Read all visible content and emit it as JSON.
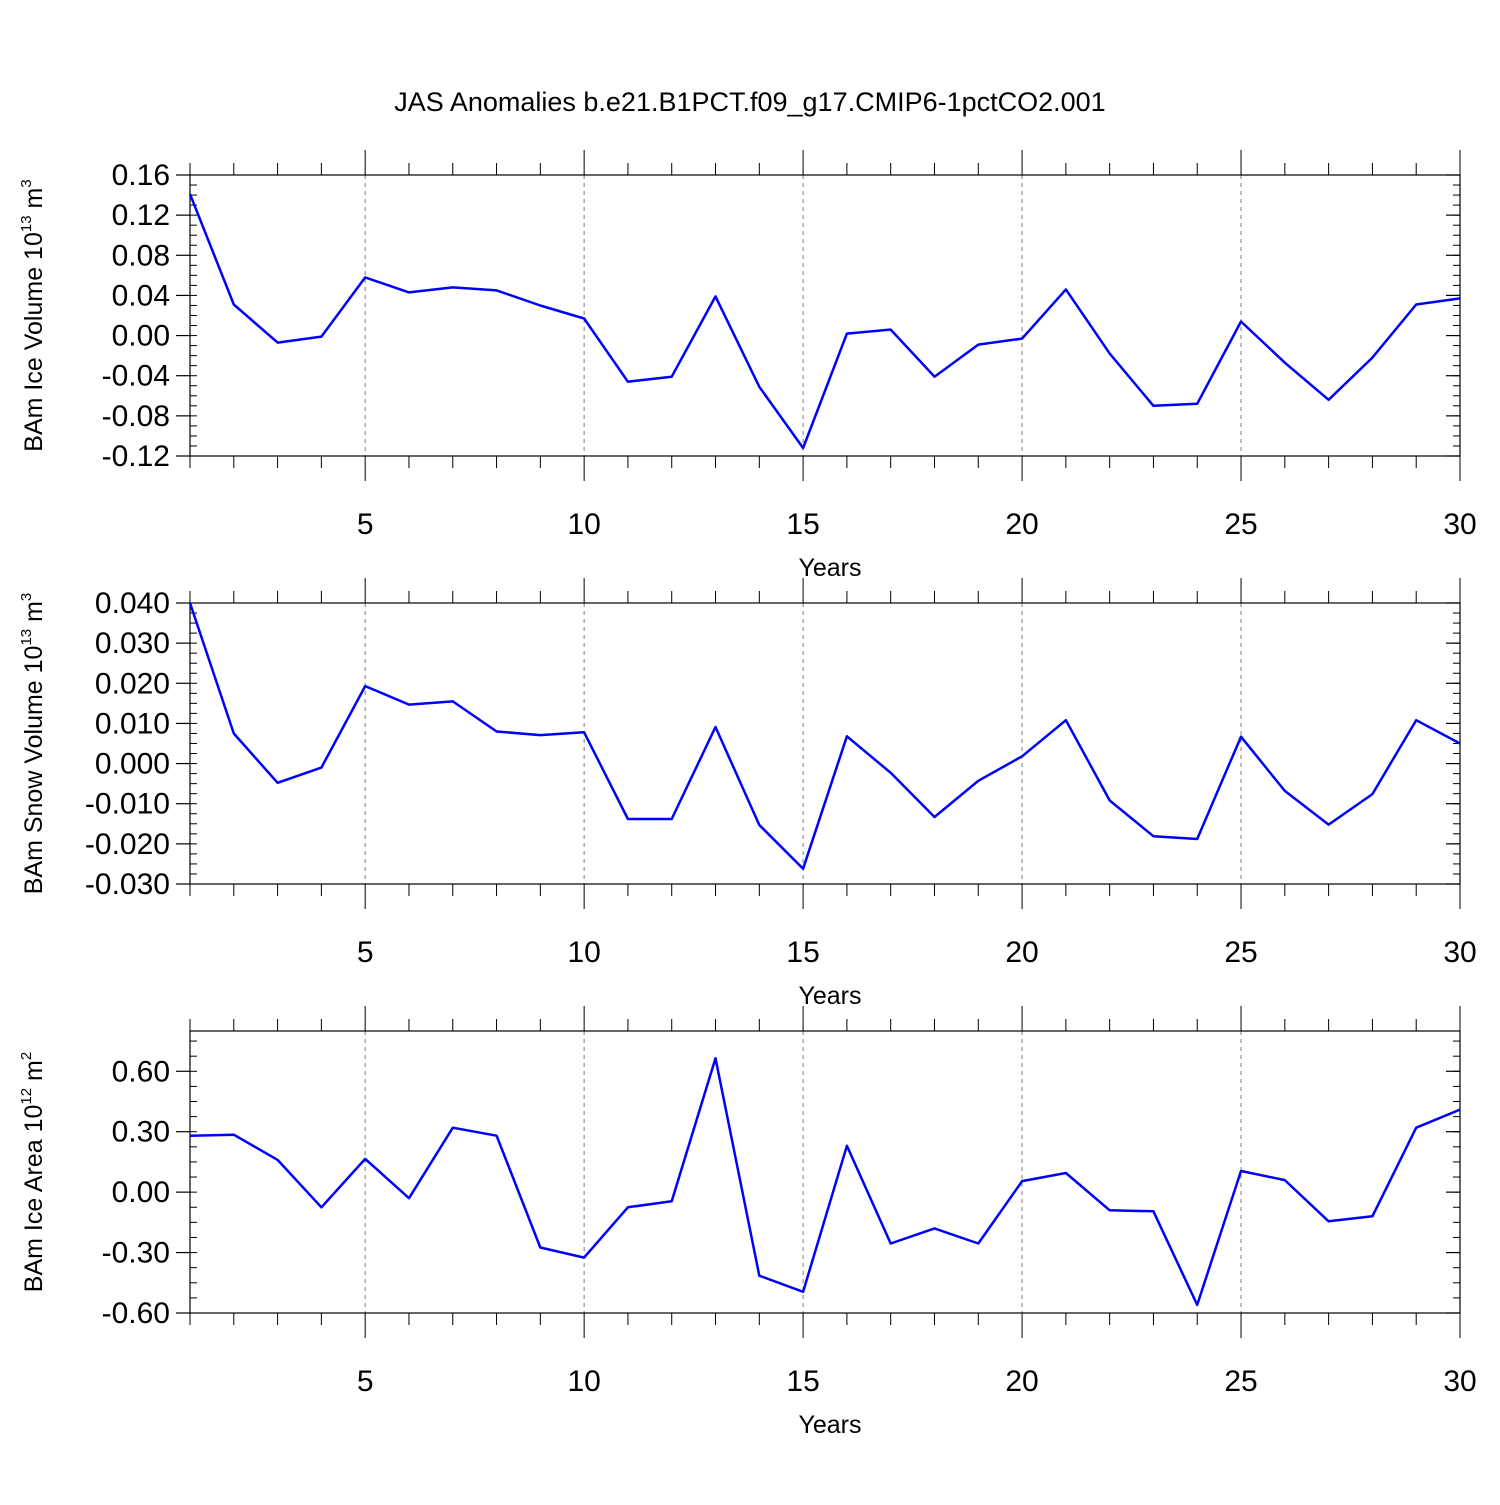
{
  "title": "JAS Anomalies b.e21.B1PCT.f09_g17.CMIP6-1pctCO2.001",
  "colors": {
    "line": "#0000ff",
    "axis": "#000000",
    "grid": "#808080"
  },
  "chart_data": [
    {
      "type": "line",
      "xlabel": "Years",
      "ylabel_main": "BAm Ice Volume 10",
      "ylabel_exp": "13",
      "ylabel_unit": " m",
      "ylabel_unit_exp": "3",
      "xlim": [
        1,
        30
      ],
      "ylim": [
        -0.12,
        0.16
      ],
      "y_ticks": [
        -0.12,
        -0.08,
        -0.04,
        0.0,
        0.04,
        0.08,
        0.12,
        0.16
      ],
      "y_tick_labels": [
        "-0.12",
        "-0.08",
        "-0.04",
        "0.00",
        "0.04",
        "0.08",
        "0.12",
        "0.16"
      ],
      "x_ticks": [
        5,
        10,
        15,
        20,
        25,
        30
      ],
      "x_tick_labels": [
        "5",
        "10",
        "15",
        "20",
        "25",
        "30"
      ],
      "grid": "dashed vertical at major x ticks",
      "x": [
        1,
        2,
        3,
        4,
        5,
        6,
        7,
        8,
        9,
        10,
        11,
        12,
        13,
        14,
        15,
        16,
        17,
        18,
        19,
        20,
        21,
        22,
        23,
        24,
        25,
        26,
        27,
        28,
        29,
        30
      ],
      "values": [
        0.141,
        0.031,
        -0.007,
        -0.001,
        0.058,
        0.043,
        0.048,
        0.045,
        0.03,
        0.017,
        -0.046,
        -0.041,
        0.039,
        -0.051,
        -0.112,
        0.002,
        0.006,
        -0.041,
        -0.009,
        -0.003,
        0.046,
        -0.018,
        -0.07,
        -0.068,
        0.014,
        -0.027,
        -0.064,
        -0.022,
        0.031,
        0.037
      ]
    },
    {
      "type": "line",
      "xlabel": "Years",
      "ylabel_main": "BAm Snow Volume 10",
      "ylabel_exp": "13",
      "ylabel_unit": " m",
      "ylabel_unit_exp": "3",
      "xlim": [
        1,
        30
      ],
      "ylim": [
        -0.03,
        0.04
      ],
      "y_ticks": [
        -0.03,
        -0.02,
        -0.01,
        0.0,
        0.01,
        0.02,
        0.03,
        0.04
      ],
      "y_tick_labels": [
        "-0.030",
        "-0.020",
        "-0.010",
        "0.000",
        "0.010",
        "0.020",
        "0.030",
        "0.040"
      ],
      "x_ticks": [
        5,
        10,
        15,
        20,
        25,
        30
      ],
      "x_tick_labels": [
        "5",
        "10",
        "15",
        "20",
        "25",
        "30"
      ],
      "grid": "dashed vertical at major x ticks",
      "x": [
        1,
        2,
        3,
        4,
        5,
        6,
        7,
        8,
        9,
        10,
        11,
        12,
        13,
        14,
        15,
        16,
        17,
        18,
        19,
        20,
        21,
        22,
        23,
        24,
        25,
        26,
        27,
        28,
        29,
        30
      ],
      "values": [
        0.04,
        0.0075,
        -0.0048,
        -0.001,
        0.0193,
        0.0147,
        0.0155,
        0.008,
        0.0071,
        0.0078,
        -0.0138,
        -0.0138,
        0.0091,
        -0.0153,
        -0.0262,
        0.0068,
        -0.0023,
        -0.0133,
        -0.0043,
        0.0018,
        0.0108,
        -0.0092,
        -0.0181,
        -0.0188,
        0.0067,
        -0.0068,
        -0.0152,
        -0.0076,
        0.0108,
        0.005
      ]
    },
    {
      "type": "line",
      "xlabel": "Years",
      "ylabel_main": "BAm Ice Area 10",
      "ylabel_exp": "12",
      "ylabel_unit": " m",
      "ylabel_unit_exp": "2",
      "xlim": [
        1,
        30
      ],
      "ylim": [
        -0.6,
        0.8
      ],
      "y_ticks": [
        -0.6,
        -0.3,
        0.0,
        0.3,
        0.6
      ],
      "y_tick_labels": [
        "-0.60",
        "-0.30",
        "0.00",
        "0.30",
        "0.60"
      ],
      "x_ticks": [
        5,
        10,
        15,
        20,
        25,
        30
      ],
      "x_tick_labels": [
        "5",
        "10",
        "15",
        "20",
        "25",
        "30"
      ],
      "grid": "dashed vertical at major x ticks",
      "x": [
        1,
        2,
        3,
        4,
        5,
        6,
        7,
        8,
        9,
        10,
        11,
        12,
        13,
        14,
        15,
        16,
        17,
        18,
        19,
        20,
        21,
        22,
        23,
        24,
        25,
        26,
        27,
        28,
        29,
        30
      ],
      "values": [
        0.28,
        0.285,
        0.16,
        -0.075,
        0.165,
        -0.03,
        0.32,
        0.28,
        -0.275,
        -0.325,
        -0.075,
        -0.045,
        0.665,
        -0.415,
        -0.495,
        0.23,
        -0.255,
        -0.18,
        -0.255,
        0.055,
        0.095,
        -0.09,
        -0.095,
        -0.56,
        0.105,
        0.06,
        -0.145,
        -0.12,
        0.32,
        0.41
      ]
    }
  ]
}
